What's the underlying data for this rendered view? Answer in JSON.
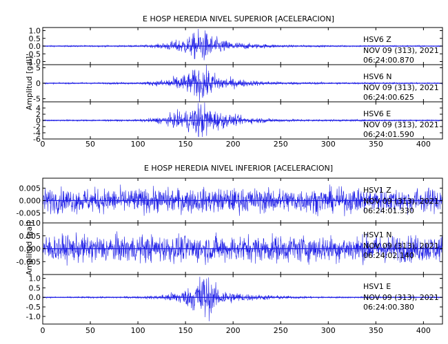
{
  "chart_data": [
    {
      "type": "line",
      "title": "E HOSP HEREDIA NIVEL SUPERIOR [ACELERACION]",
      "xlabel": "",
      "ylabel": "Amplitud [gal]",
      "xlim": [
        0,
        420
      ],
      "x_ticks": [
        "0",
        "50",
        "100",
        "150",
        "200",
        "250",
        "300",
        "350",
        "400"
      ],
      "grid": false,
      "panels": [
        {
          "station": "HSV6",
          "component": "Z",
          "date": "NOV 09 (313), 2021",
          "time": "06:24:00.870",
          "ylim": [
            -1.2,
            1.2
          ],
          "y_ticks": [
            "1.0",
            "0.5",
            "0.0",
            "-0.5",
            "-1.0"
          ],
          "envelope": {
            "t": [
              0,
              100,
              120,
              140,
              155,
              165,
              170,
              180,
              195,
              220,
              260,
              300,
              420
            ],
            "amp": [
              0.04,
              0.05,
              0.12,
              0.35,
              0.6,
              1.05,
              0.95,
              0.55,
              0.3,
              0.15,
              0.07,
              0.05,
              0.04
            ]
          }
        },
        {
          "station": "HSV6",
          "component": "N",
          "date": "NOV 09 (313), 2021",
          "time": "06:24:00.625",
          "ylim": [
            -6,
            6
          ],
          "y_ticks": [
            "5",
            "0",
            "-5"
          ],
          "envelope": {
            "t": [
              0,
              100,
              120,
              140,
              155,
              165,
              170,
              180,
              195,
              220,
              260,
              300,
              420
            ],
            "amp": [
              0.2,
              0.3,
              0.8,
              2.0,
              3.2,
              5.5,
              5.0,
              3.0,
              1.6,
              0.8,
              0.4,
              0.3,
              0.2
            ]
          }
        },
        {
          "station": "HSV6",
          "component": "E",
          "date": "NOV 09 (313), 2021",
          "time": "06:24:01.590",
          "ylim": [
            -6,
            6
          ],
          "y_ticks": [
            "4",
            "2",
            "0",
            "-2",
            "-4",
            "-6"
          ],
          "envelope": {
            "t": [
              0,
              100,
              120,
              140,
              155,
              165,
              170,
              180,
              195,
              220,
              260,
              300,
              420
            ],
            "amp": [
              0.2,
              0.3,
              0.9,
              2.2,
              3.5,
              5.8,
              5.2,
              3.2,
              1.8,
              0.9,
              0.4,
              0.3,
              0.2
            ]
          }
        }
      ]
    },
    {
      "type": "line",
      "title": "E HOSP HEREDIA NIVEL INFERIOR [ACELERACION]",
      "xlabel": "",
      "ylabel": "Amplitud [gal]",
      "xlim": [
        0,
        420
      ],
      "x_ticks": [
        "0",
        "50",
        "100",
        "150",
        "200",
        "250",
        "300",
        "350",
        "400"
      ],
      "grid": false,
      "panels": [
        {
          "station": "HSV1",
          "component": "Z",
          "date": "NOV 09 (313), 2021",
          "time": "06:24:01.330",
          "ylim": [
            -0.009,
            0.009
          ],
          "y_ticks": [
            "0.005",
            "0.000",
            "-0.005"
          ],
          "envelope": {
            "t": [
              0,
              420
            ],
            "amp": [
              0.0045,
              0.0045
            ]
          }
        },
        {
          "station": "HSV1",
          "component": "N",
          "date": "NOV 09 (313), 2021",
          "time": "06:24:02.140",
          "ylim": [
            -0.01,
            0.01
          ],
          "y_ticks": [
            "0.010",
            "0.005",
            "0.000",
            "-0.005"
          ],
          "envelope": {
            "t": [
              0,
              420
            ],
            "amp": [
              0.0048,
              0.0048
            ]
          }
        },
        {
          "station": "HSV1",
          "component": "E",
          "date": "NOV 09 (313), 2021",
          "time": "06:24:00.380",
          "ylim": [
            -1.4,
            1.2
          ],
          "y_ticks": [
            "1.0",
            "0.5",
            "0.0",
            "-0.5",
            "-1.0"
          ],
          "envelope": {
            "t": [
              0,
              100,
              120,
              140,
              155,
              165,
              170,
              180,
              195,
              220,
              260,
              300,
              420
            ],
            "amp": [
              0.03,
              0.05,
              0.1,
              0.28,
              0.5,
              1.1,
              1.3,
              0.6,
              0.3,
              0.15,
              0.07,
              0.04,
              0.03
            ]
          }
        }
      ]
    }
  ]
}
